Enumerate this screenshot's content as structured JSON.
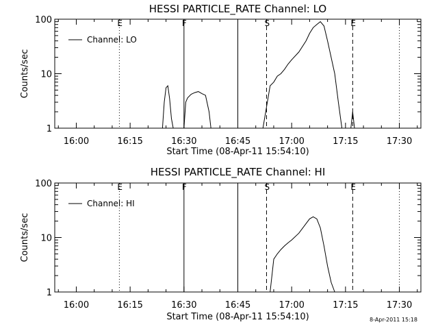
{
  "footer": {
    "timestamp": "8-Apr-2011 15:18"
  },
  "chart_data": [
    {
      "type": "line",
      "title": "HESSI PARTICLE_RATE Channel: LO",
      "xlabel": "Start Time (08-Apr-11 15:54:10)",
      "ylabel": "Counts/sec",
      "yscale": "log",
      "ylim": [
        1,
        100
      ],
      "xlim": [
        "15:54",
        "17:36"
      ],
      "x_ticks": [
        "16:00",
        "16:15",
        "16:30",
        "16:45",
        "17:00",
        "17:15",
        "17:30"
      ],
      "y_ticks": [
        "1",
        "10",
        "100"
      ],
      "legend": {
        "position": "top-left",
        "entries": [
          "Channel: LO"
        ]
      },
      "markers": [
        {
          "time": "16:12",
          "style": "dotted",
          "label": "E"
        },
        {
          "time": "16:30",
          "style": "solid",
          "label": "F"
        },
        {
          "time": "16:45",
          "style": "solid",
          "label": ""
        },
        {
          "time": "16:53",
          "style": "dashed",
          "label": "S"
        },
        {
          "time": "17:17",
          "style": "dashed",
          "label": "E"
        },
        {
          "time": "17:30",
          "style": "dotted",
          "label": ""
        }
      ],
      "series": [
        {
          "name": "Channel: LO",
          "segments": [
            {
              "x": [
                "16:24",
                "16:24.5",
                "16:25",
                "16:25.5",
                "16:26",
                "16:26.5",
                "16:27"
              ],
              "y": [
                1,
                3,
                5.5,
                6,
                3.5,
                1.5,
                1
              ]
            },
            {
              "x": [
                "16:30",
                "16:30.5",
                "16:31",
                "16:32",
                "16:33",
                "16:34",
                "16:35",
                "16:36",
                "16:37",
                "16:37.5"
              ],
              "y": [
                1,
                3,
                3.6,
                4.2,
                4.5,
                4.7,
                4.3,
                4,
                2,
                1
              ]
            },
            {
              "x": [
                "16:52",
                "16:54",
                "16:55",
                "16:56",
                "16:57",
                "16:58",
                "16:59",
                "17:00",
                "17:02",
                "17:04",
                "17:05",
                "17:06",
                "17:07",
                "17:08",
                "17:09",
                "17:10",
                "17:12",
                "17:13",
                "17:14"
              ],
              "y": [
                1,
                6,
                7,
                9,
                10,
                12,
                15,
                18,
                25,
                40,
                55,
                70,
                80,
                90,
                75,
                40,
                10,
                3,
                1
              ]
            },
            {
              "x": [
                "17:16.5",
                "17:17",
                "17:17.5"
              ],
              "y": [
                1,
                2,
                1
              ]
            }
          ]
        }
      ]
    },
    {
      "type": "line",
      "title": "HESSI PARTICLE_RATE Channel: HI",
      "xlabel": "Start Time (08-Apr-11 15:54:10)",
      "ylabel": "Counts/sec",
      "yscale": "log",
      "ylim": [
        1,
        100
      ],
      "xlim": [
        "15:54",
        "17:36"
      ],
      "x_ticks": [
        "16:00",
        "16:15",
        "16:30",
        "16:45",
        "17:00",
        "17:15",
        "17:30"
      ],
      "y_ticks": [
        "1",
        "10",
        "100"
      ],
      "legend": {
        "position": "top-left",
        "entries": [
          "Channel: HI"
        ]
      },
      "markers": [
        {
          "time": "16:12",
          "style": "dotted",
          "label": "E"
        },
        {
          "time": "16:30",
          "style": "solid",
          "label": "F"
        },
        {
          "time": "16:45",
          "style": "solid",
          "label": ""
        },
        {
          "time": "16:53",
          "style": "dashed",
          "label": "S"
        },
        {
          "time": "17:17",
          "style": "dashed",
          "label": "E"
        },
        {
          "time": "17:30",
          "style": "dotted",
          "label": ""
        }
      ],
      "series": [
        {
          "name": "Channel: HI",
          "segments": [
            {
              "x": [
                "16:54",
                "16:55",
                "16:56",
                "16:57",
                "16:58",
                "16:59",
                "17:00",
                "17:02",
                "17:04",
                "17:05",
                "17:06",
                "17:07",
                "17:08",
                "17:09",
                "17:10",
                "17:11",
                "17:12"
              ],
              "y": [
                1,
                4,
                5,
                6,
                7,
                8,
                9,
                12,
                18,
                22,
                24,
                22,
                15,
                7,
                3,
                1.5,
                1
              ]
            }
          ]
        }
      ]
    }
  ]
}
